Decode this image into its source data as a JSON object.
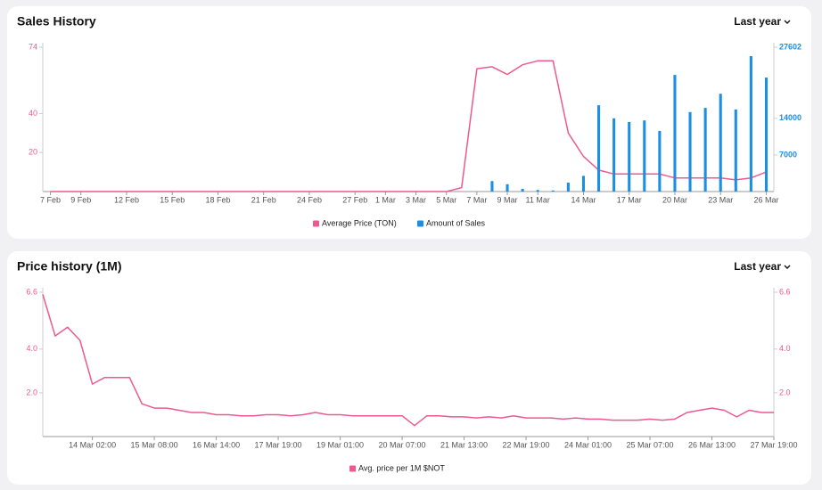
{
  "chart_data": [
    {
      "type": "combo",
      "title": "Sales History",
      "period": "Last year",
      "categories": [
        "7 Feb",
        null,
        "9 Feb",
        null,
        null,
        "12 Feb",
        null,
        null,
        "15 Feb",
        null,
        null,
        "18 Feb",
        null,
        null,
        "21 Feb",
        null,
        null,
        "24 Feb",
        null,
        null,
        "27 Feb",
        null,
        "1 Mar",
        null,
        "3 Mar",
        null,
        "5 Mar",
        null,
        "7 Mar",
        null,
        "9 Mar",
        null,
        "11 Mar",
        null,
        null,
        "14 Mar",
        null,
        null,
        "17 Mar",
        null,
        null,
        "20 Mar",
        null,
        null,
        "23 Mar",
        null,
        null,
        "26 Mar"
      ],
      "series": [
        {
          "name": "Average Price (TON)",
          "type": "line",
          "color": "#ec5a8f",
          "values": [
            0,
            0,
            0,
            0,
            0,
            0,
            0,
            0,
            0,
            0,
            0,
            0,
            0,
            0,
            0,
            0,
            0,
            0,
            0,
            0,
            0,
            0,
            0,
            0,
            0,
            0,
            0,
            2,
            63,
            64,
            60,
            65,
            67,
            67,
            30,
            18,
            11,
            9,
            9,
            9,
            9,
            7,
            7,
            7,
            7,
            6,
            7,
            10
          ]
        },
        {
          "name": "Amount of Sales",
          "type": "bar",
          "axis": "y2",
          "color": "#1a8fe3",
          "values": [
            null,
            null,
            null,
            null,
            null,
            null,
            null,
            null,
            null,
            null,
            null,
            null,
            null,
            null,
            null,
            null,
            null,
            null,
            null,
            null,
            null,
            null,
            null,
            null,
            null,
            null,
            null,
            null,
            null,
            2000,
            1400,
            500,
            300,
            200,
            1700,
            3000,
            16500,
            14000,
            13300,
            13600,
            11600,
            22300,
            15200,
            16000,
            18700,
            15700,
            25900,
            21800
          ]
        }
      ],
      "ylim": [
        0,
        74
      ],
      "yticks": [
        20,
        40,
        74
      ],
      "y2lim": [
        0,
        27602
      ],
      "y2ticks": [
        7000,
        14000,
        27602
      ]
    },
    {
      "type": "line",
      "title": "Price history (1M)",
      "period": "Last year",
      "categories": [
        null,
        null,
        null,
        null,
        "14 Mar 02:00",
        null,
        null,
        null,
        null,
        "15 Mar 08:00",
        null,
        null,
        null,
        null,
        "16 Mar 14:00",
        null,
        null,
        null,
        null,
        "17 Mar 19:00",
        null,
        null,
        null,
        null,
        "19 Mar 01:00",
        null,
        null,
        null,
        null,
        "20 Mar 07:00",
        null,
        null,
        null,
        null,
        "21 Mar 13:00",
        null,
        null,
        null,
        null,
        "22 Mar 19:00",
        null,
        null,
        null,
        null,
        "24 Mar 01:00",
        null,
        null,
        null,
        null,
        "25 Mar 07:00",
        null,
        null,
        null,
        null,
        "26 Mar 13:00",
        null,
        null,
        null,
        null,
        "27 Mar 19:00"
      ],
      "series": [
        {
          "name": "Avg. price per 1M $NOT",
          "type": "line",
          "color": "#ec5a8f",
          "values": [
            6.5,
            4.6,
            5.0,
            4.4,
            2.4,
            2.7,
            2.7,
            2.7,
            1.5,
            1.3,
            1.3,
            1.2,
            1.1,
            1.1,
            1.0,
            1.0,
            0.95,
            0.95,
            1.0,
            1.0,
            0.95,
            1.0,
            1.1,
            1.0,
            1.0,
            0.95,
            0.95,
            0.95,
            0.95,
            0.95,
            0.5,
            0.95,
            0.95,
            0.9,
            0.9,
            0.85,
            0.9,
            0.85,
            0.95,
            0.85,
            0.85,
            0.85,
            0.8,
            0.85,
            0.8,
            0.8,
            0.75,
            0.75,
            0.75,
            0.8,
            0.75,
            0.8,
            1.1,
            1.2,
            1.3,
            1.2,
            0.9,
            1.2,
            1.1,
            1.1
          ]
        }
      ],
      "ylim": [
        0,
        6.6
      ],
      "yticks": [
        {
          "value": 2,
          "label": "2.0"
        },
        {
          "value": 4,
          "label": "4.0"
        },
        6.6
      ],
      "y2lim": [
        0,
        6.6
      ],
      "y2ticks": [
        {
          "value": 2,
          "label": "2.0"
        },
        {
          "value": 4,
          "label": "4.0"
        },
        6.6
      ]
    }
  ]
}
